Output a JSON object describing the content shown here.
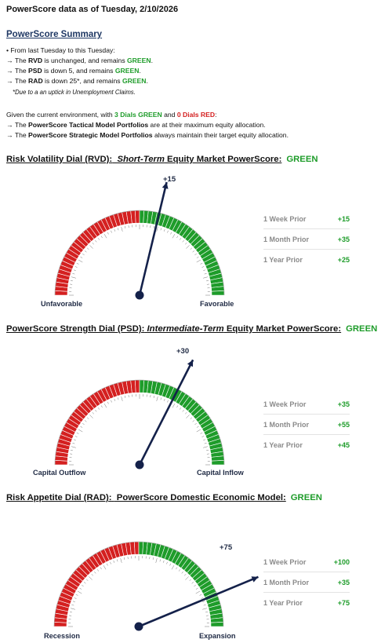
{
  "header": {
    "date_line": "PowerScore data as of Tuesday, 2/10/2026",
    "summary_title": "PowerScore Summary"
  },
  "summary": {
    "intro": "• From last Tuesday to this Tuesday:",
    "lines": [
      {
        "arrow": "→",
        "pre": "The ",
        "name": "RVD",
        "mid": " is unchanged, and remains ",
        "status": "GREEN",
        "end": "."
      },
      {
        "arrow": "→",
        "pre": "The ",
        "name": "PSD",
        "mid": " is down 5, and remains ",
        "status": "GREEN",
        "end": "."
      },
      {
        "arrow": "→",
        "pre": "The ",
        "name": "RAD",
        "mid": " is down 25*, and remains ",
        "status": "GREEN",
        "end": "."
      }
    ],
    "footnote": "*Due to a an uptick in Unemployment Claims.",
    "environment": {
      "pre": "Given the current environment, with ",
      "green_count": "3 Dials GREEN",
      "and": " and ",
      "red_count": "0 Dials RED",
      "end": ":"
    },
    "portfolio_lines": [
      {
        "arrow": "→",
        "pre": "The ",
        "name": "PowerScore Tactical Model Portfolios",
        "rest": " are at their maximum equity allocation."
      },
      {
        "arrow": "→",
        "pre": "The ",
        "name": "PowerScore Strategic Model Portfolios",
        "rest": " always maintain their target equity allocation."
      }
    ]
  },
  "dials": [
    {
      "title_a": "Risk Volatility Dial (RVD):",
      "title_b": "Short-Term",
      "title_c": " Equity Market PowerScore:",
      "status": "GREEN",
      "value": "+15",
      "needle_value": 15,
      "left_label": "Unfavorable",
      "right_label": "Favorable",
      "history": [
        {
          "label": "1 Week Prior",
          "value": "+15"
        },
        {
          "label": "1 Month Prior",
          "value": "+35"
        },
        {
          "label": "1 Year Prior",
          "value": "+25"
        }
      ]
    },
    {
      "title_a": "PowerScore Strength Dial (PSD):",
      "title_b": "Intermediate-Term",
      "title_c": " Equity Market PowerScore:",
      "status": "GREEN",
      "value": "+30",
      "needle_value": 30,
      "left_label": "Capital Outflow",
      "right_label": "Capital Inflow",
      "history": [
        {
          "label": "1 Week Prior",
          "value": "+35"
        },
        {
          "label": "1 Month Prior",
          "value": "+55"
        },
        {
          "label": "1 Year Prior",
          "value": "+45"
        }
      ]
    },
    {
      "title_a": "Risk Appetite Dial (RAD):",
      "title_b": "",
      "title_c": " PowerScore Domestic Economic Model:",
      "status": "GREEN",
      "value": "+75",
      "needle_value": 75,
      "left_label": "Recession",
      "right_label": "Expansion",
      "history": [
        {
          "label": "1 Week Prior",
          "value": "+100"
        },
        {
          "label": "1 Month Prior",
          "value": "+35"
        },
        {
          "label": "1 Year Prior",
          "value": "+75"
        }
      ]
    }
  ],
  "colors": {
    "green": "#1e9c2a",
    "red": "#d42020",
    "needle": "#14214a",
    "title_blue": "#1f3864"
  }
}
